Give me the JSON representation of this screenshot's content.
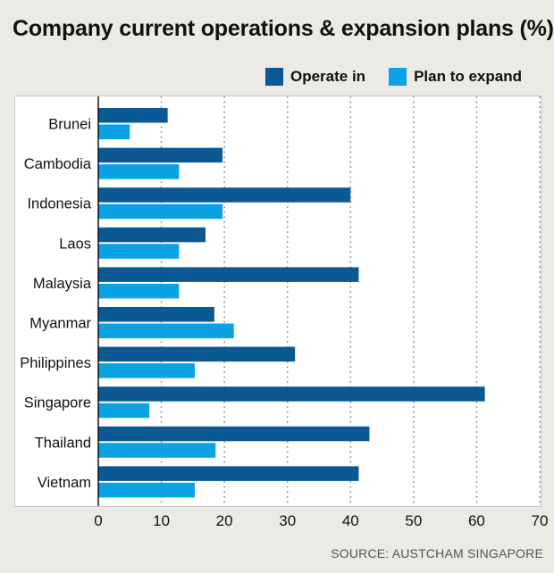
{
  "title": "Company current operations & expansion plans (%)",
  "source": "SOURCE: AUSTCHAM SINGAPORE",
  "colors": {
    "operate": "#0a5894",
    "expand": "#0aa2e2",
    "gridline": "#888888"
  },
  "chart_data": {
    "type": "bar",
    "orientation": "horizontal",
    "title": "Company current operations & expansion plans (%)",
    "categories": [
      "Brunei",
      "Cambodia",
      "Indonesia",
      "Laos",
      "Malaysia",
      "Myanmar",
      "Philippines",
      "Singapore",
      "Thailand",
      "Vietnam"
    ],
    "series": [
      {
        "name": "Operate in",
        "values": [
          11,
          19.7,
          40,
          17,
          41.3,
          18.4,
          31.2,
          61.3,
          43,
          41.3
        ]
      },
      {
        "name": "Plan to expand",
        "values": [
          5,
          12.8,
          19.7,
          12.8,
          12.8,
          21.5,
          15.3,
          8.1,
          18.6,
          15.3
        ]
      }
    ],
    "xlim": [
      0,
      70
    ],
    "xticks": [
      "0",
      "10",
      "20",
      "30",
      "40",
      "50",
      "60",
      "70"
    ],
    "grid": "vertical dotted",
    "legend": "top-right"
  }
}
